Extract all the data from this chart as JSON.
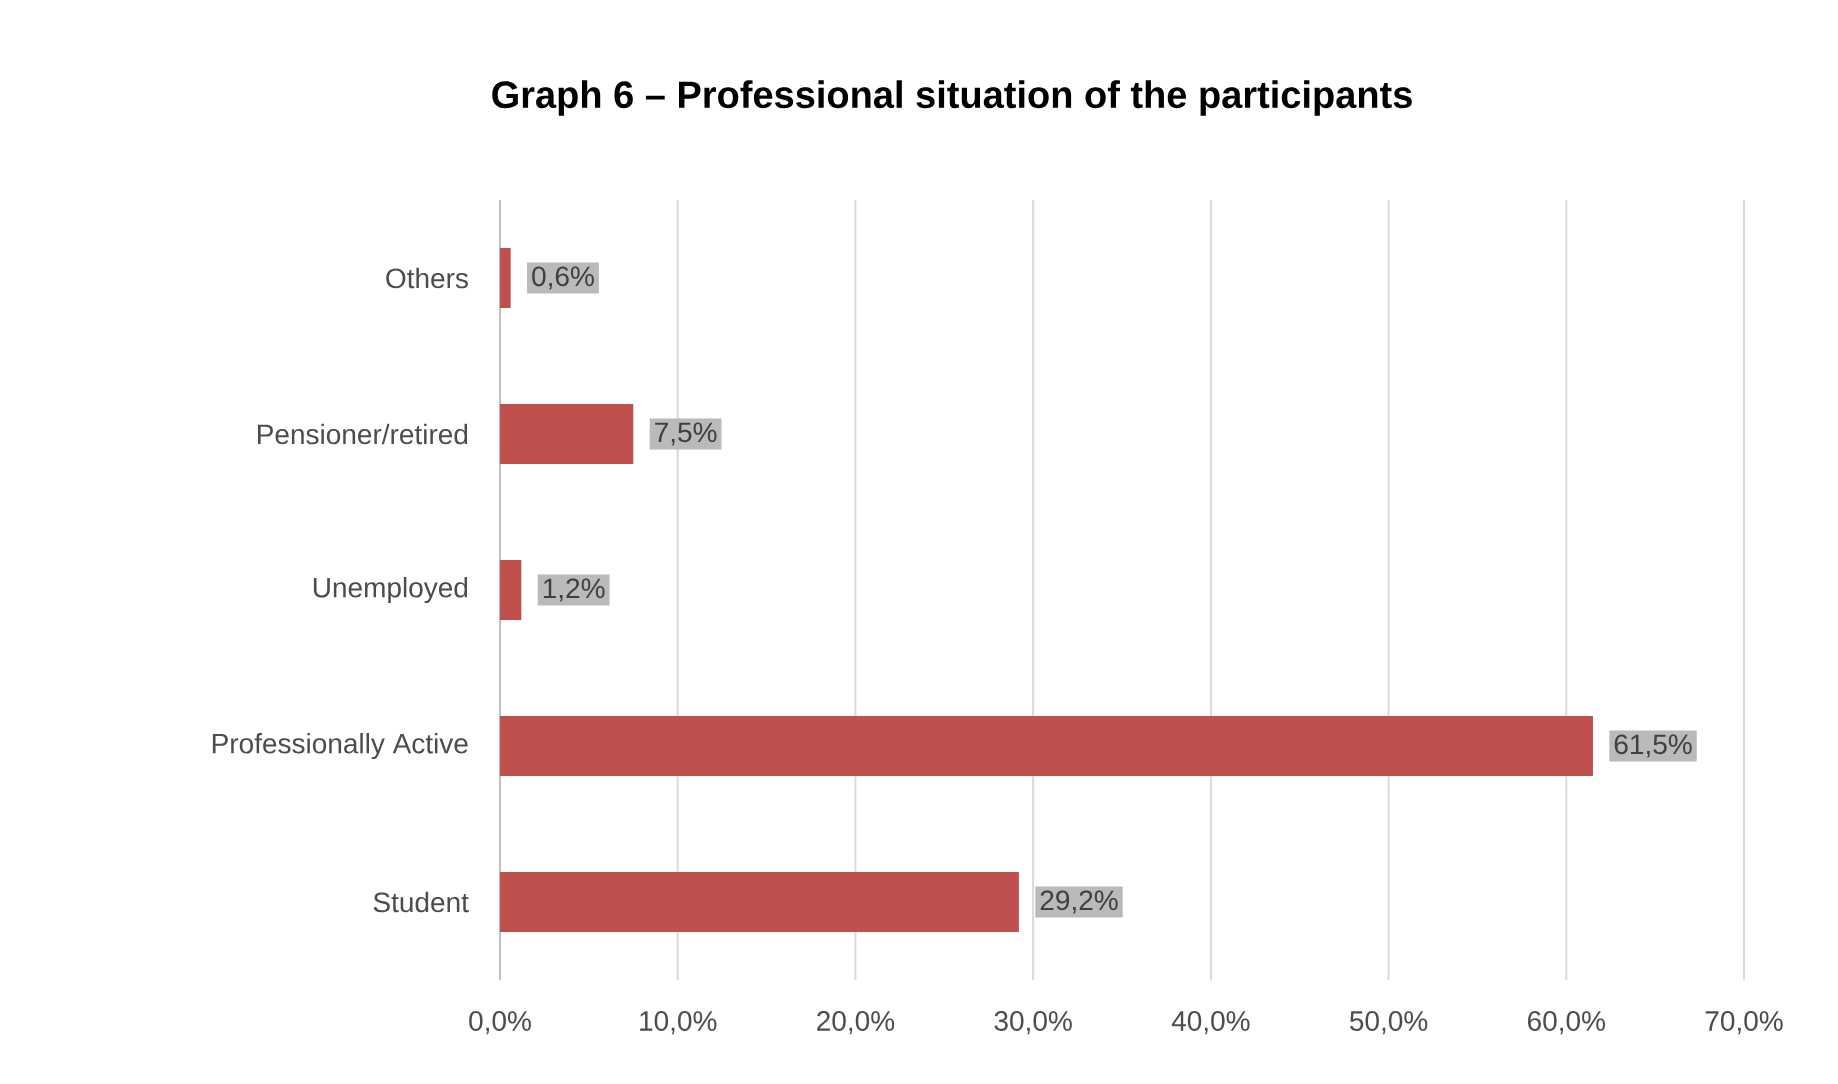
{
  "chart_data": {
    "type": "bar",
    "orientation": "horizontal",
    "title": "Graph 6 – Professional situation of the participants",
    "categories": [
      "Others",
      "Pensioner/retired",
      "Unemployed",
      "Professionally Active",
      "Student"
    ],
    "values": [
      0.6,
      7.5,
      1.2,
      61.5,
      29.2
    ],
    "value_labels": [
      "0,6%",
      "7,5%",
      "1,2%",
      "61,5%",
      "29,2%"
    ],
    "color": "#c0504d",
    "xlim": [
      0,
      70
    ],
    "xticks": [
      {
        "value": 0,
        "label": "0,0%"
      },
      {
        "value": 10,
        "label": "10,0%"
      },
      {
        "value": 20,
        "label": "20,0%"
      },
      {
        "value": 30,
        "label": "30,0%"
      },
      {
        "value": 40,
        "label": "40,0%"
      },
      {
        "value": 50,
        "label": "50,0%"
      },
      {
        "value": 60,
        "label": "60,0%"
      },
      {
        "value": 70,
        "label": "70,0%"
      }
    ],
    "grid": "x"
  }
}
